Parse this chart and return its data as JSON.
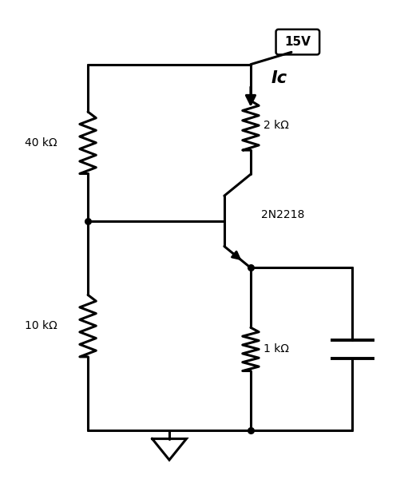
{
  "bg_color": "#ffffff",
  "line_color": "#000000",
  "line_width": 2.2,
  "fig_width": 5.26,
  "fig_height": 6.2,
  "labels": {
    "vcc": "15V",
    "ic": "Ic",
    "r1": "40 kΩ",
    "r2": "10 kΩ",
    "rc": "2 kΩ",
    "re": "1 kΩ",
    "transistor": "2N2218"
  }
}
